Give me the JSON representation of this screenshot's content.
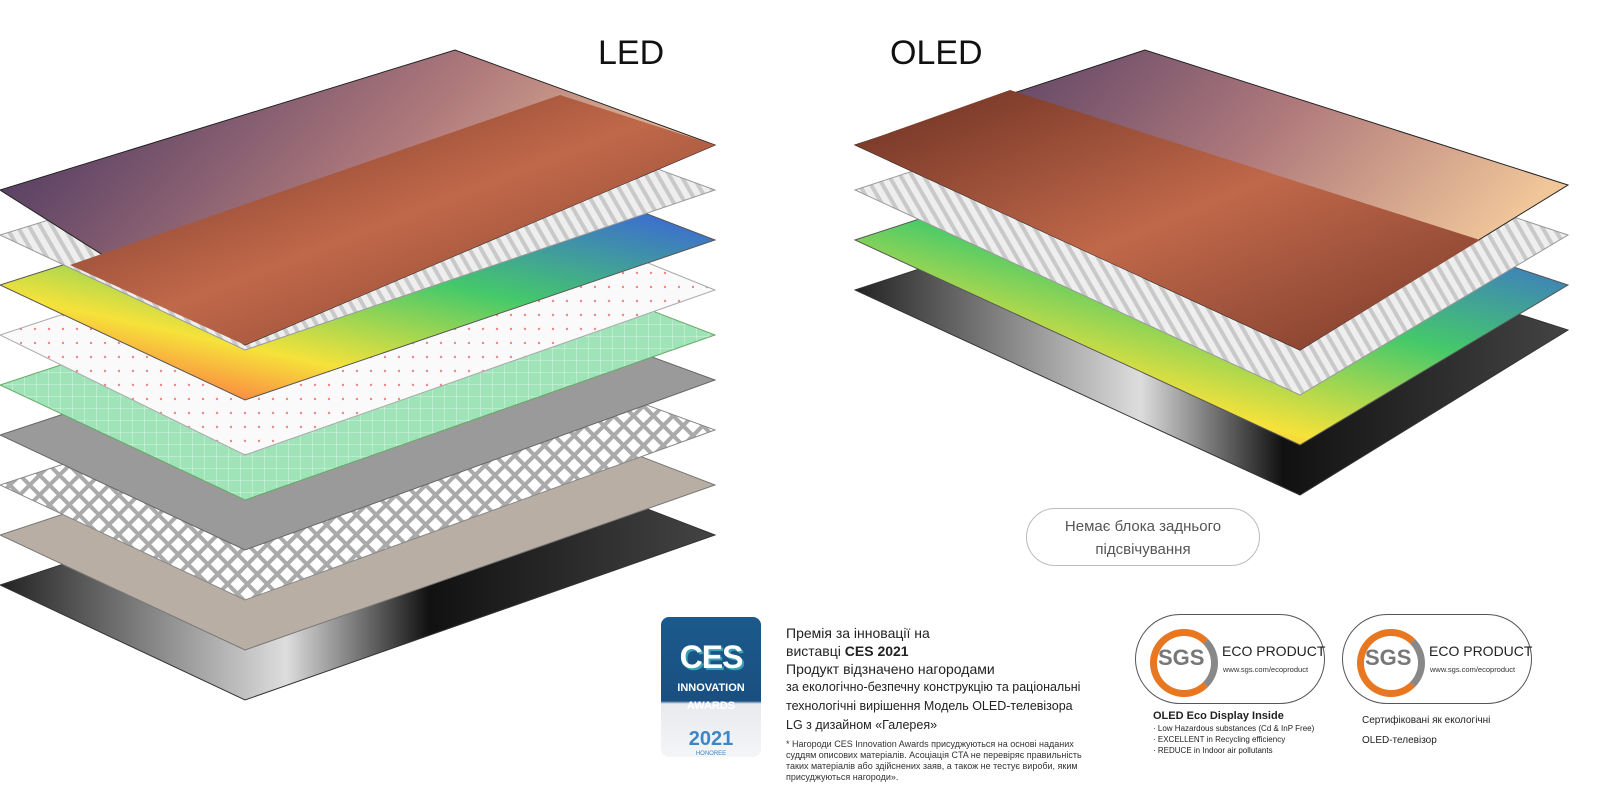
{
  "headings": {
    "led": "LED",
    "oled": "OLED"
  },
  "oled_note": {
    "line1": "Немає блока заднього",
    "line2": "підсвічування"
  },
  "ces": {
    "badge": {
      "logo": "CES",
      "line1": "INNOVATION",
      "line2": "AWARDS",
      "year": "2021",
      "honoree": "HONOREE"
    },
    "line1": "Премія за інновації на",
    "line2_prefix": "виставці ",
    "line2_bold": "CES 2021",
    "line3": "Продукт відзначено нагородами",
    "line4": "за екологічно-безпечну конструкцію та раціональні",
    "line5": "технологічні вирішення Модель OLED-телевізора",
    "line6": "LG з дизайном «Галерея»",
    "footnote": "* Нагороди CES Innovation Awards присуджуються на основі наданих суддям описових матеріалів. Асоціація CTA не перевіряє правильність таких матеріалів або здійснених заяв, а також не тестує вироби, яким присуджуються нагороди»."
  },
  "sgs": [
    {
      "logo": "SGS",
      "label": "ECO PRODUCT",
      "url": "www.sgs.com/ecoproduct",
      "title": "OLED Eco Display Inside",
      "items": [
        "· Low Hazardous substances (Cd & InP Free)",
        "· EXCELLENT in Recycling efficiency",
        "· REDUCE in Indoor air pollutants"
      ]
    },
    {
      "logo": "SGS",
      "label": "ECO PRODUCT",
      "url": "www.sgs.com/ecoproduct",
      "line1": "Сертифіковані як екологічні",
      "line2": "OLED-телевізор"
    }
  ],
  "colors": {
    "sgs_orange": "#e87722",
    "ces_blue": "#1b5a8c"
  }
}
